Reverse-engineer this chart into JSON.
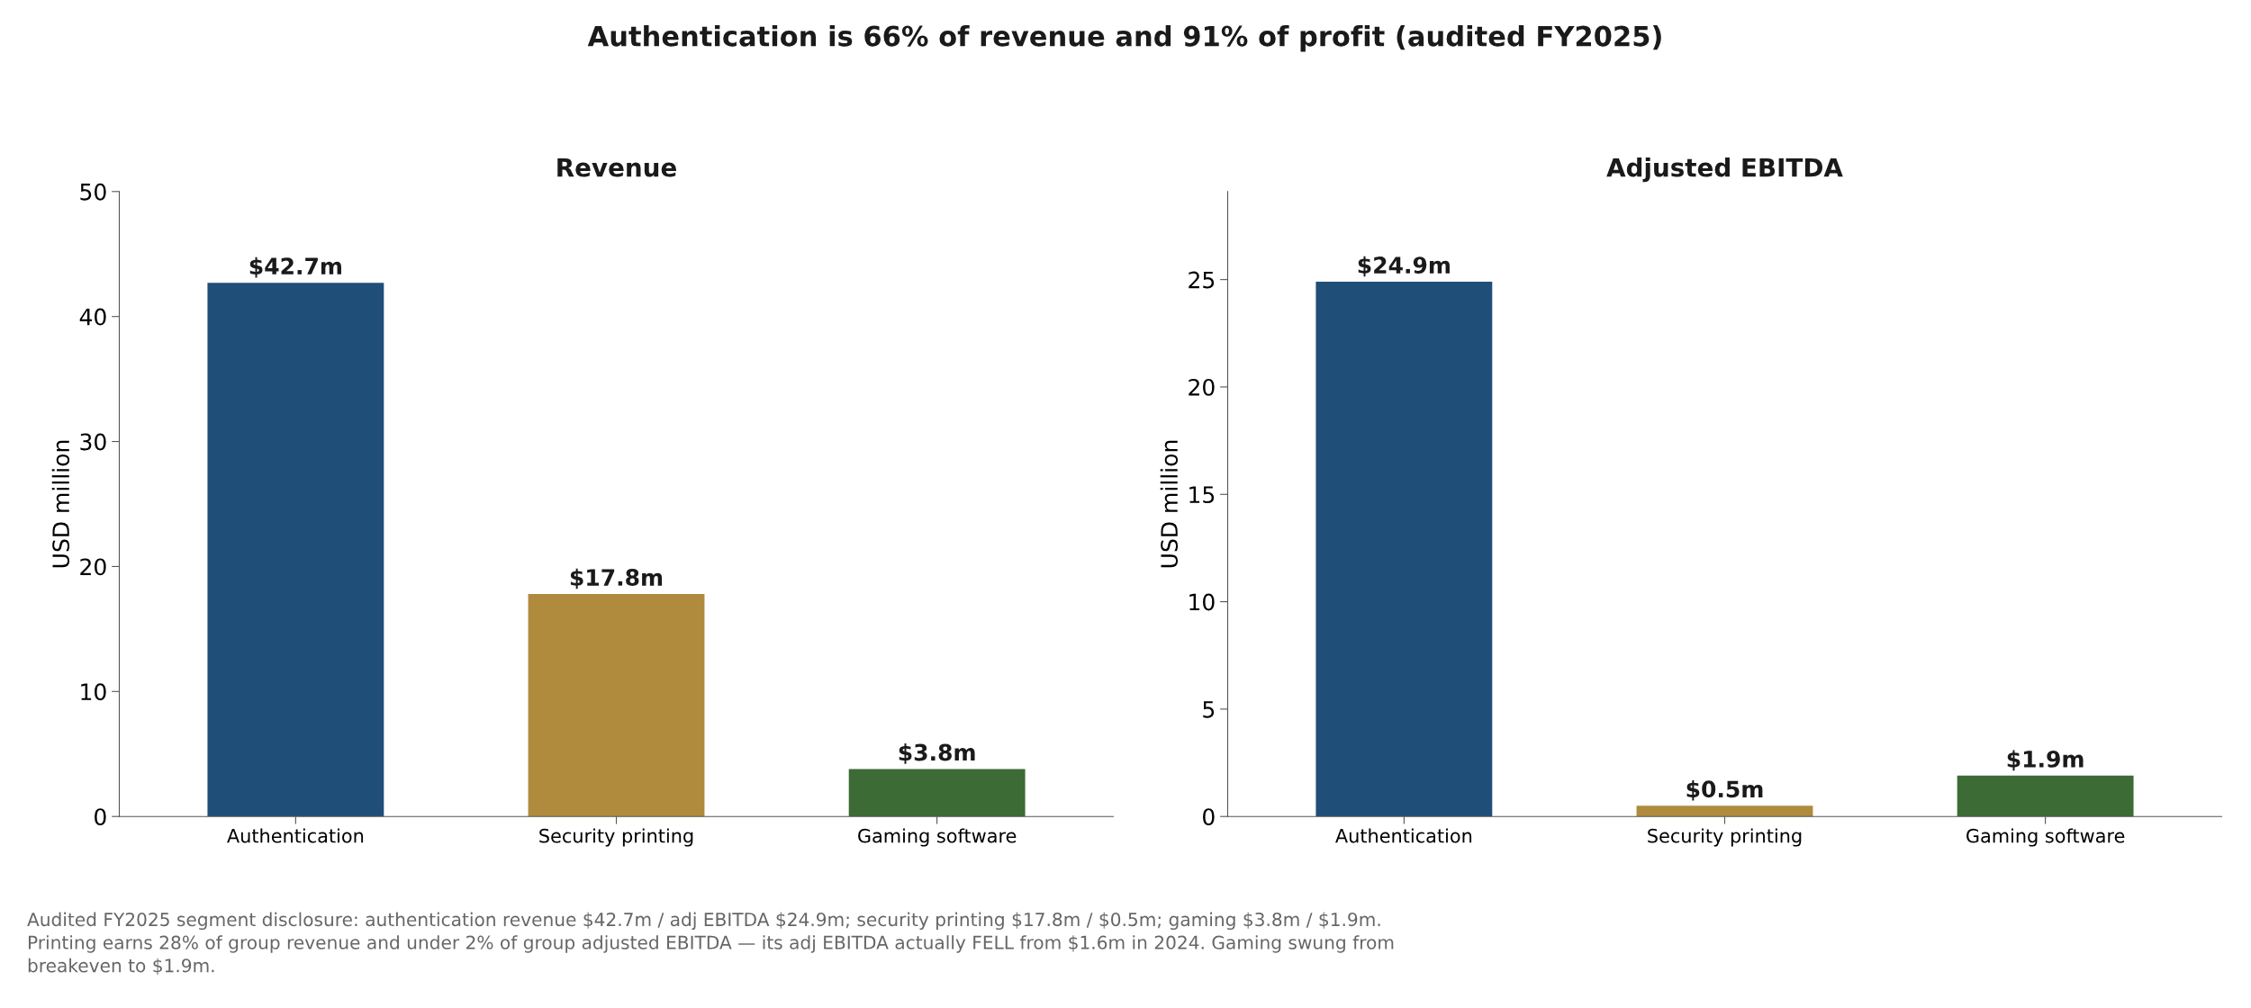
{
  "chart_data": [
    {
      "type": "bar",
      "subtitle": "Authentication is 66% of revenue and 91% of profit (audited FY2025)",
      "title": "Revenue",
      "ylabel": "USD million",
      "categories": [
        "Authentication",
        "Security printing",
        "Gaming software"
      ],
      "values": [
        42.7,
        17.8,
        3.8
      ],
      "colors": [
        "#1f4e79",
        "#b08b3e",
        "#3d6b35"
      ],
      "value_labels": [
        "$42.7m",
        "$17.8m",
        "$3.8m"
      ],
      "ylim": [
        0,
        50
      ],
      "yticks": [
        0,
        10,
        20,
        30,
        40,
        50
      ],
      "grid": false,
      "legend": false,
      "annotations": [
        "Audited FY2025 segment disclosure: authentication revenue $42.7m / adj EBITDA $24.9m; security printing $17.8m / $0.5m; gaming $3.8m / $1.9m.\nPrinting earns 28% of group revenue and under 2% of group adjusted EBITDA — its adj EBITDA actually FELL from $1.6m in 2024. Gaming swung from\nbreakeven to $1.9m."
      ]
    },
    {
      "type": "bar",
      "title": "Adjusted EBITDA",
      "ylabel": "USD million",
      "categories": [
        "Authentication",
        "Security printing",
        "Gaming software"
      ],
      "values": [
        24.9,
        0.5,
        1.9
      ],
      "colors": [
        "#1f4e79",
        "#b08b3e",
        "#3d6b35"
      ],
      "value_labels": [
        "$24.9m",
        "$0.5m",
        "$1.9m"
      ],
      "ylim": [
        0,
        29.1
      ],
      "yticks": [
        0,
        5,
        10,
        15,
        20,
        25
      ],
      "grid": false,
      "legend": false
    }
  ]
}
